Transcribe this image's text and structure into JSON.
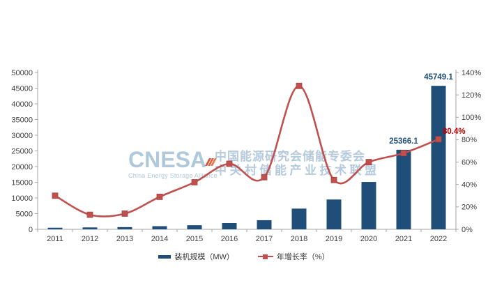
{
  "watermark": {
    "logo_text": "CNESA",
    "logo_subtitle": "China Energy Storage Alliance",
    "org_line1": "中国能源研究会储能专委会",
    "org_line2": "中关村储能产业技术联盟",
    "logo_color": "#b0c8dc",
    "org_color": "#b5cadd"
  },
  "chart_data": {
    "type": "combo-bar-line",
    "title": "",
    "xlabel": "",
    "ylabel": "",
    "grid": false,
    "legend_position": "bottom",
    "categories": [
      "2011",
      "2012",
      "2013",
      "2014",
      "2015",
      "2016",
      "2017",
      "2018",
      "2019",
      "2020",
      "2021",
      "2022"
    ],
    "series": [
      {
        "name": "装机规模（MW）",
        "type": "bar",
        "axis": "left",
        "color": "#1F4E79",
        "values": [
          500,
          600,
          700,
          1000,
          1300,
          2000,
          2900,
          6600,
          9500,
          15100,
          25366.1,
          45749.1
        ]
      },
      {
        "name": "年增长率（%）",
        "type": "line",
        "axis": "right",
        "color": "#C0504D",
        "values": [
          30,
          13,
          14,
          29,
          42,
          58.5,
          46.5,
          128,
          44,
          60,
          68,
          80.4
        ]
      }
    ],
    "left_axis": {
      "min": 0,
      "max": 50000,
      "step": 5000,
      "ticks": [
        "0",
        "5000",
        "10000",
        "15000",
        "20000",
        "25000",
        "30000",
        "35000",
        "40000",
        "45000",
        "50000"
      ]
    },
    "right_axis": {
      "min": 0,
      "max": 140,
      "step": 20,
      "ticks": [
        "0%",
        "20%",
        "40%",
        "60%",
        "80%",
        "100%",
        "120%",
        "140%"
      ]
    },
    "data_labels": [
      {
        "series": 0,
        "index": 10,
        "text": "25366.1",
        "color": "#1F4E79"
      },
      {
        "series": 0,
        "index": 11,
        "text": "45749.1",
        "color": "#1F4E79"
      },
      {
        "series": 1,
        "index": 11,
        "text": "80.4%",
        "color": "#C00000"
      }
    ],
    "axis_color": "#A6A6A6",
    "tick_label_color": "#404040"
  }
}
